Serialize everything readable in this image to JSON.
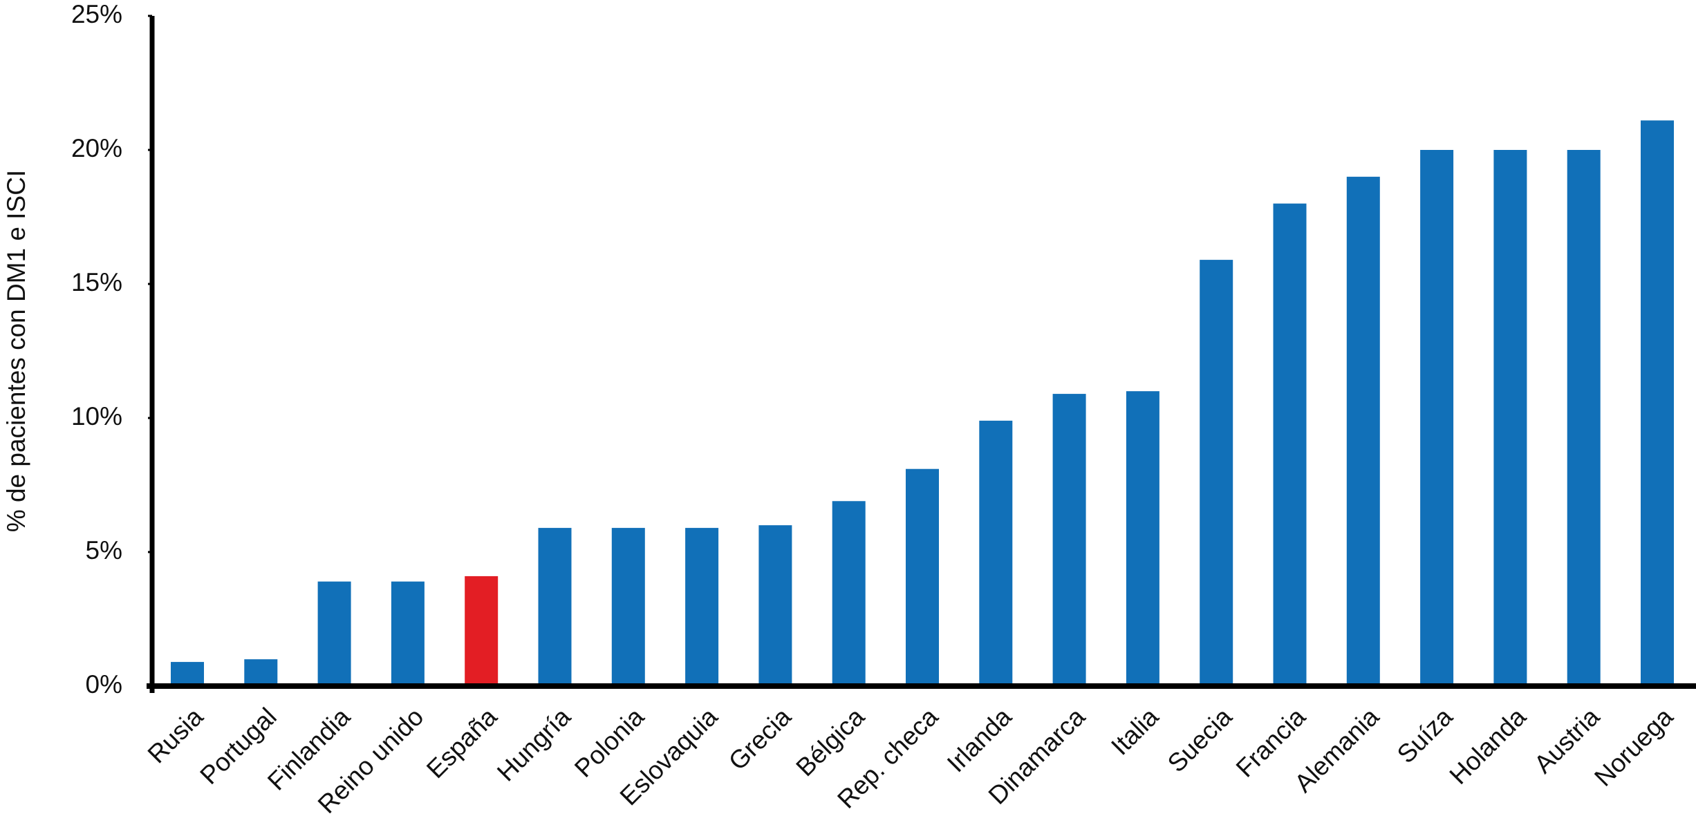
{
  "chart_data": {
    "type": "bar",
    "y_label": "% de pacientes con DM1 e ISCI",
    "categories": [
      "Rusia",
      "Portugal",
      "Finlandia",
      "Reino unido",
      "España",
      "Hungría",
      "Polonia",
      "Eslovaquia",
      "Grecia",
      "Bélgica",
      "Rep. checa",
      "Irlanda",
      "Dinamarca",
      "Italia",
      "Suecia",
      "Francia",
      "Alemania",
      "Suíza",
      "Holanda",
      "Austria",
      "Noruega"
    ],
    "values": [
      0.9,
      1.0,
      3.9,
      3.9,
      4.1,
      5.9,
      5.9,
      5.9,
      6.0,
      6.9,
      8.1,
      9.9,
      10.9,
      11.0,
      15.9,
      18.0,
      19.0,
      20.0,
      20.0,
      20.0,
      21.1
    ],
    "colors": [
      "#1170b8",
      "#1170b8",
      "#1170b8",
      "#1170b8",
      "#e31e24",
      "#1170b8",
      "#1170b8",
      "#1170b8",
      "#1170b8",
      "#1170b8",
      "#1170b8",
      "#1170b8",
      "#1170b8",
      "#1170b8",
      "#1170b8",
      "#1170b8",
      "#1170b8",
      "#1170b8",
      "#1170b8",
      "#1170b8",
      "#1170b8"
    ],
    "ylim": [
      0,
      25
    ],
    "yticks": [
      {
        "value": 0,
        "label": "0%"
      },
      {
        "value": 5,
        "label": "5%"
      },
      {
        "value": 10,
        "label": "10%"
      },
      {
        "value": 15,
        "label": "15%"
      },
      {
        "value": 20,
        "label": "20%"
      },
      {
        "value": 25,
        "label": "25%"
      }
    ],
    "grid": false
  }
}
